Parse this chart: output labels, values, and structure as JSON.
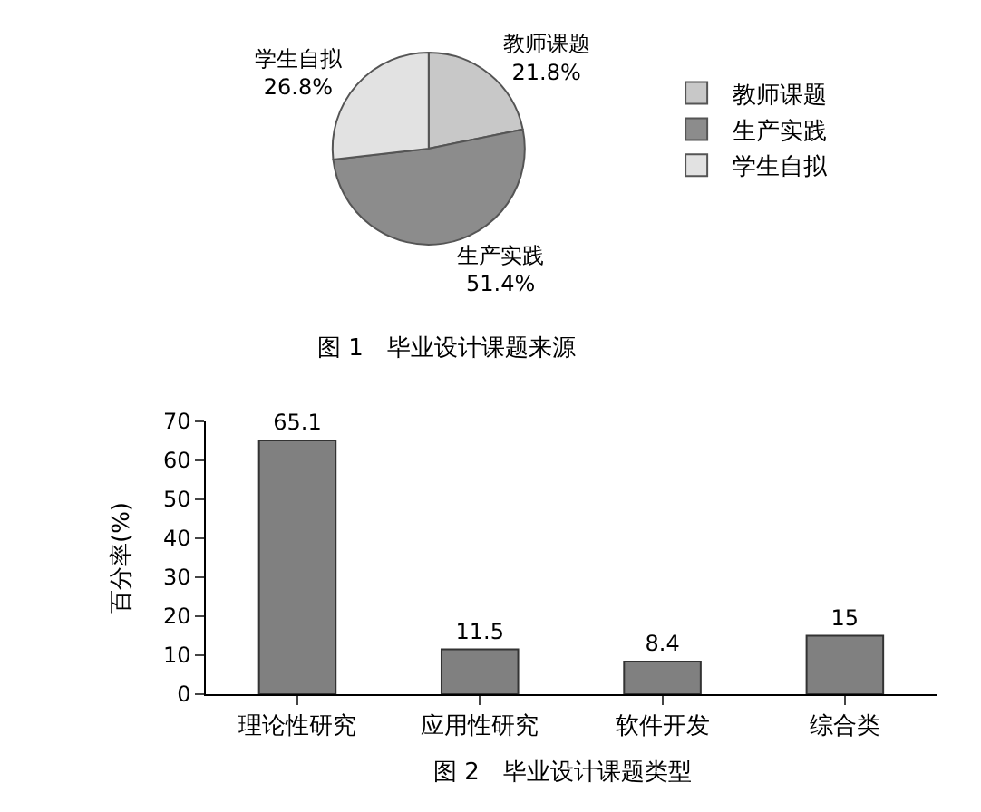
{
  "chart_data": [
    {
      "type": "pie",
      "title": "图 1　毕业设计课题来源",
      "categories": [
        "教师课题",
        "生产实践",
        "学生自拟"
      ],
      "values": [
        21.8,
        51.4,
        26.8
      ],
      "value_labels": [
        "21.8%",
        "51.4%",
        "26.8%"
      ],
      "colors": [
        "#c8c8c8",
        "#8c8c8c",
        "#e2e2e2"
      ],
      "legend": "right"
    },
    {
      "type": "bar",
      "title": "图 2　毕业设计课题类型",
      "ylabel": "百分率(%)",
      "categories": [
        "理论性研究",
        "应用性研究",
        "软件开发",
        "综合类"
      ],
      "values": [
        65.1,
        11.5,
        8.4,
        15
      ],
      "color": "#808080",
      "ylim": [
        0,
        70
      ],
      "yticks": [
        0,
        10,
        20,
        30,
        40,
        50,
        60,
        70
      ],
      "data_labels": true
    }
  ]
}
